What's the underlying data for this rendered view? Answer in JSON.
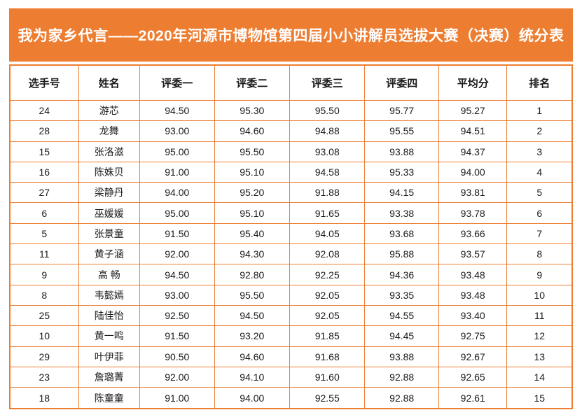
{
  "title": "我为家乡代言——2020年河源市博物馆第四届小小讲解员选拔大赛（决赛）统分表",
  "colors": {
    "accent": "#ED7D31",
    "border": "#ED7D31",
    "banner_text": "#FFFFFF",
    "cell_text": "#1A1A1A",
    "page_bg": "#FFFFFF"
  },
  "table": {
    "columns": [
      "选手号",
      "姓名",
      "评委一",
      "评委二",
      "评委三",
      "评委四",
      "平均分",
      "排名"
    ],
    "rows": [
      [
        "24",
        "游芯",
        "94.50",
        "95.30",
        "95.50",
        "95.77",
        "95.27",
        "1"
      ],
      [
        "28",
        "龙舞",
        "93.00",
        "94.60",
        "94.88",
        "95.55",
        "94.51",
        "2"
      ],
      [
        "15",
        "张洛滋",
        "95.00",
        "95.50",
        "93.08",
        "93.88",
        "94.37",
        "3"
      ],
      [
        "16",
        "陈姝贝",
        "91.00",
        "95.10",
        "94.58",
        "95.33",
        "94.00",
        "4"
      ],
      [
        "27",
        "梁静丹",
        "94.00",
        "95.20",
        "91.88",
        "94.15",
        "93.81",
        "5"
      ],
      [
        "6",
        "巫媛媛",
        "95.00",
        "95.10",
        "91.65",
        "93.38",
        "93.78",
        "6"
      ],
      [
        "5",
        "张景童",
        "91.50",
        "95.40",
        "94.05",
        "93.68",
        "93.66",
        "7"
      ],
      [
        "11",
        "黄子涵",
        "92.00",
        "94.30",
        "92.08",
        "95.88",
        "93.57",
        "8"
      ],
      [
        "9",
        "高 畅",
        "94.50",
        "92.80",
        "92.25",
        "94.36",
        "93.48",
        "9"
      ],
      [
        "8",
        "韦懿嫣",
        "93.00",
        "95.50",
        "92.05",
        "93.35",
        "93.48",
        "10"
      ],
      [
        "25",
        "陆佳怡",
        "92.50",
        "94.50",
        "92.05",
        "94.55",
        "93.40",
        "11"
      ],
      [
        "10",
        "黄一鸣",
        "91.50",
        "93.20",
        "91.85",
        "94.45",
        "92.75",
        "12"
      ],
      [
        "29",
        "叶伊菲",
        "90.50",
        "94.60",
        "91.68",
        "93.88",
        "92.67",
        "13"
      ],
      [
        "23",
        "詹璐菁",
        "92.00",
        "94.10",
        "91.60",
        "92.88",
        "92.65",
        "14"
      ],
      [
        "18",
        "陈童童",
        "91.00",
        "94.00",
        "92.55",
        "92.88",
        "92.61",
        "15"
      ]
    ]
  }
}
